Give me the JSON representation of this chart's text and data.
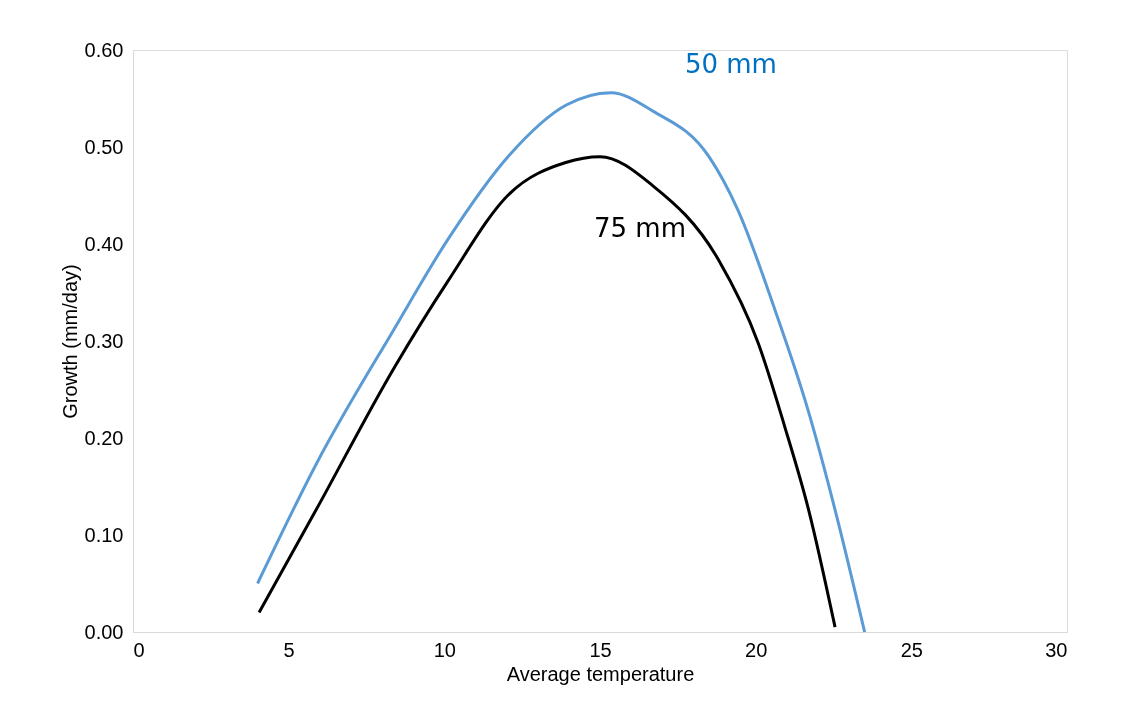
{
  "chart_data": {
    "type": "line",
    "xlabel": "Average temperature",
    "ylabel": "Growth (mm/day)",
    "xlim": [
      0,
      30
    ],
    "xticks": [
      0,
      5,
      10,
      15,
      20,
      25,
      30
    ],
    "ylim": [
      0,
      0.6
    ],
    "yticks": [
      {
        "value": 0,
        "label": "0.00"
      },
      {
        "value": 0.1,
        "label": "0.10"
      },
      {
        "value": 0.2,
        "label": "0.20"
      },
      {
        "value": 0.3,
        "label": "0.30"
      },
      {
        "value": 0.4,
        "label": "0.40"
      },
      {
        "value": 0.5,
        "label": "0.50"
      },
      {
        "value": 0.6,
        "label": "0.60"
      }
    ],
    "grid": false,
    "legend": false,
    "marker": "none",
    "line_style": "solid",
    "series": [
      {
        "name": "50 mm",
        "color": "#5b9bd5",
        "x": [
          4,
          5.9,
          8.4,
          10.1,
          12.1,
          13.9,
          15.35,
          16.7,
          18.5,
          19.43,
          20.62,
          21.68,
          22.55,
          23.5
        ],
        "values": [
          0.05,
          0.174,
          0.313,
          0.404,
          0.492,
          0.543,
          0.556,
          0.537,
          0.49,
          0.435,
          0.332,
          0.229,
          0.126,
          0.0
        ]
      },
      {
        "name": "75 mm",
        "color": "#000000",
        "x": [
          4.05,
          5.9,
          8.4,
          10.1,
          12.1,
          13.9,
          15.0,
          16.7,
          18.8,
          20.08,
          20.94,
          21.7,
          22.55
        ],
        "values": [
          0.02,
          0.127,
          0.273,
          0.361,
          0.452,
          0.484,
          0.49,
          0.46,
          0.384,
          0.298,
          0.211,
          0.126,
          0.005
        ]
      }
    ]
  }
}
